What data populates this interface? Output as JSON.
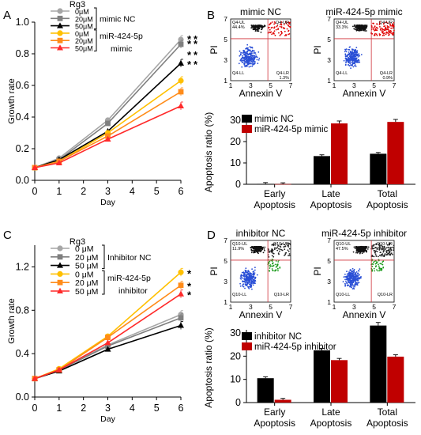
{
  "panels": {
    "A": "A",
    "B": "B",
    "C": "C",
    "D": "D"
  },
  "chart_data": [
    {
      "panel": "A",
      "type": "line",
      "title": "",
      "xlabel": "Day",
      "ylabel": "Growth rate",
      "xlim": [
        0,
        6
      ],
      "ylim": [
        0.0,
        1.0
      ],
      "xticks": [
        "0",
        "1",
        "2",
        "3",
        "4",
        "5",
        "6"
      ],
      "yticks": [
        "0.0",
        "0.2",
        "0.4",
        "0.6",
        "0.8",
        "1.0"
      ],
      "x": [
        0,
        1,
        3,
        6
      ],
      "legend_header": "Rg3",
      "legend_groups": [
        "mimic NC",
        "miR-424-5p",
        "mimic"
      ],
      "significance": [
        "*",
        "*",
        "*",
        "*",
        "*",
        "*",
        "*",
        "*"
      ],
      "series": [
        {
          "name": "0μM",
          "color": "#a6a6a6",
          "marker": "circle",
          "values": [
            0.08,
            0.14,
            0.38,
            0.89
          ]
        },
        {
          "name": "20μM",
          "color": "#7f7f7f",
          "marker": "square",
          "values": [
            0.08,
            0.13,
            0.36,
            0.86
          ]
        },
        {
          "name": "50μM",
          "color": "#000000",
          "marker": "triangle",
          "values": [
            0.08,
            0.13,
            0.31,
            0.74
          ]
        },
        {
          "name": "0μM",
          "color": "#ffc000",
          "marker": "circle",
          "values": [
            0.08,
            0.12,
            0.3,
            0.63
          ]
        },
        {
          "name": "20μM",
          "color": "#ff8c1a",
          "marker": "square",
          "values": [
            0.08,
            0.12,
            0.28,
            0.56
          ]
        },
        {
          "name": "50μM",
          "color": "#ff2a2a",
          "marker": "triangle",
          "values": [
            0.08,
            0.11,
            0.26,
            0.47
          ]
        }
      ]
    },
    {
      "panel": "B",
      "type": "bar",
      "title": "",
      "xlabel": "",
      "ylabel": "Apoptosis ratio (%)",
      "ylim": [
        0,
        30
      ],
      "yticks": [
        "0",
        "10",
        "20",
        "30"
      ],
      "categories": [
        [
          "Early",
          "Apoptosis"
        ],
        [
          "Late",
          "Apoptosis"
        ],
        [
          "Total",
          "Apoptosis"
        ]
      ],
      "series": [
        {
          "name": "mimic NC",
          "color": "#000000",
          "values": [
            0.2,
            13.2,
            14.3
          ]
        },
        {
          "name": "miR-424-5p  mimic",
          "color": "#c00000",
          "values": [
            0.1,
            28.5,
            29.2
          ]
        }
      ],
      "flow_titles": [
        "mimic NC",
        "miR-424-5p mimic"
      ],
      "flow_xlabel": "Annexin V",
      "flow_ylabel": "PI",
      "flow_quadrants": [
        {
          "ul": "Q4-UL",
          "ul_pct": "44.4%",
          "ur": "Q4-UR",
          "ll": "Q4-LL",
          "lr": "Q4-LR",
          "lr_pct": "1.3%"
        },
        {
          "ul": "Q4-UL",
          "ul_pct": "33.3%",
          "ur": "Q4-UR",
          "ll": "Q4-LL",
          "lr": "Q4-LR",
          "lr_pct": "0.9%"
        }
      ],
      "flow_ticks": {
        "x": [
          "1",
          "3",
          "5",
          "7"
        ],
        "y": [
          "1",
          "3",
          "5",
          "7"
        ]
      }
    },
    {
      "panel": "C",
      "type": "line",
      "title": "",
      "xlabel": "Day",
      "ylabel": "Growth rate",
      "xlim": [
        0,
        6
      ],
      "ylim": [
        0.0,
        1.4
      ],
      "xticks": [
        "0",
        "1",
        "2",
        "3",
        "4",
        "5",
        "6"
      ],
      "yticks": [
        "0.0",
        "0.4",
        "0.8",
        "1.2"
      ],
      "x": [
        0,
        1,
        3,
        6
      ],
      "legend_header": "Rg3",
      "legend_groups": [
        "Inhibitor NC",
        "miR-424-5p",
        "inhibitor"
      ],
      "significance": [
        "*",
        "*",
        "*"
      ],
      "series": [
        {
          "name": "0 μM",
          "color": "#a6a6a6",
          "marker": "circle",
          "values": [
            0.17,
            0.25,
            0.48,
            0.76
          ]
        },
        {
          "name": "20 μM",
          "color": "#7f7f7f",
          "marker": "square",
          "values": [
            0.17,
            0.25,
            0.47,
            0.73
          ]
        },
        {
          "name": "50 μM",
          "color": "#000000",
          "marker": "triangle",
          "values": [
            0.17,
            0.24,
            0.44,
            0.66
          ]
        },
        {
          "name": "0 μM",
          "color": "#ffc000",
          "marker": "circle",
          "values": [
            0.17,
            0.26,
            0.56,
            1.15
          ]
        },
        {
          "name": "20 μM",
          "color": "#ff8c1a",
          "marker": "square",
          "values": [
            0.17,
            0.25,
            0.55,
            1.03
          ]
        },
        {
          "name": "50 μM",
          "color": "#ff2a2a",
          "marker": "triangle",
          "values": [
            0.17,
            0.25,
            0.5,
            0.95
          ]
        }
      ]
    },
    {
      "panel": "D",
      "type": "bar",
      "title": "",
      "xlabel": "",
      "ylabel": "Apoptosis ratio (%)",
      "ylim": [
        0,
        30
      ],
      "yticks": [
        "0",
        "10",
        "20",
        "30"
      ],
      "categories": [
        [
          "Early",
          "Apoptosis"
        ],
        [
          "Late",
          "Apoptosis"
        ],
        [
          "Total",
          "Apoptosis"
        ]
      ],
      "series": [
        {
          "name": "inhibitor NC",
          "color": "#000000",
          "values": [
            10.5,
            22.5,
            33.2
          ]
        },
        {
          "name": "miR-424-5p  inhibitor",
          "color": "#c00000",
          "values": [
            1.2,
            18.3,
            19.8
          ]
        }
      ],
      "flow_titles": [
        "inhibitor NC",
        "miR-424-5p inhibitor"
      ],
      "flow_xlabel": "Annexin V",
      "flow_ylabel": "PI",
      "flow_quadrants": [
        {
          "ul": "Q10-UL",
          "ul_pct": "11.9%",
          "ur": "Q10-UR",
          "ll": "Q10-LL",
          "lr": "Q10-LR",
          "lr_pct": ""
        },
        {
          "ul": "Q10-UL",
          "ul_pct": "47.5%",
          "ur": "Q10-UR",
          "ll": "Q10-LL",
          "lr": "Q10-LR",
          "lr_pct": ""
        }
      ],
      "flow_ticks": {
        "x": [
          "1",
          "3",
          "5",
          "7"
        ],
        "y": [
          "1",
          "3",
          "5",
          "7"
        ]
      }
    }
  ]
}
